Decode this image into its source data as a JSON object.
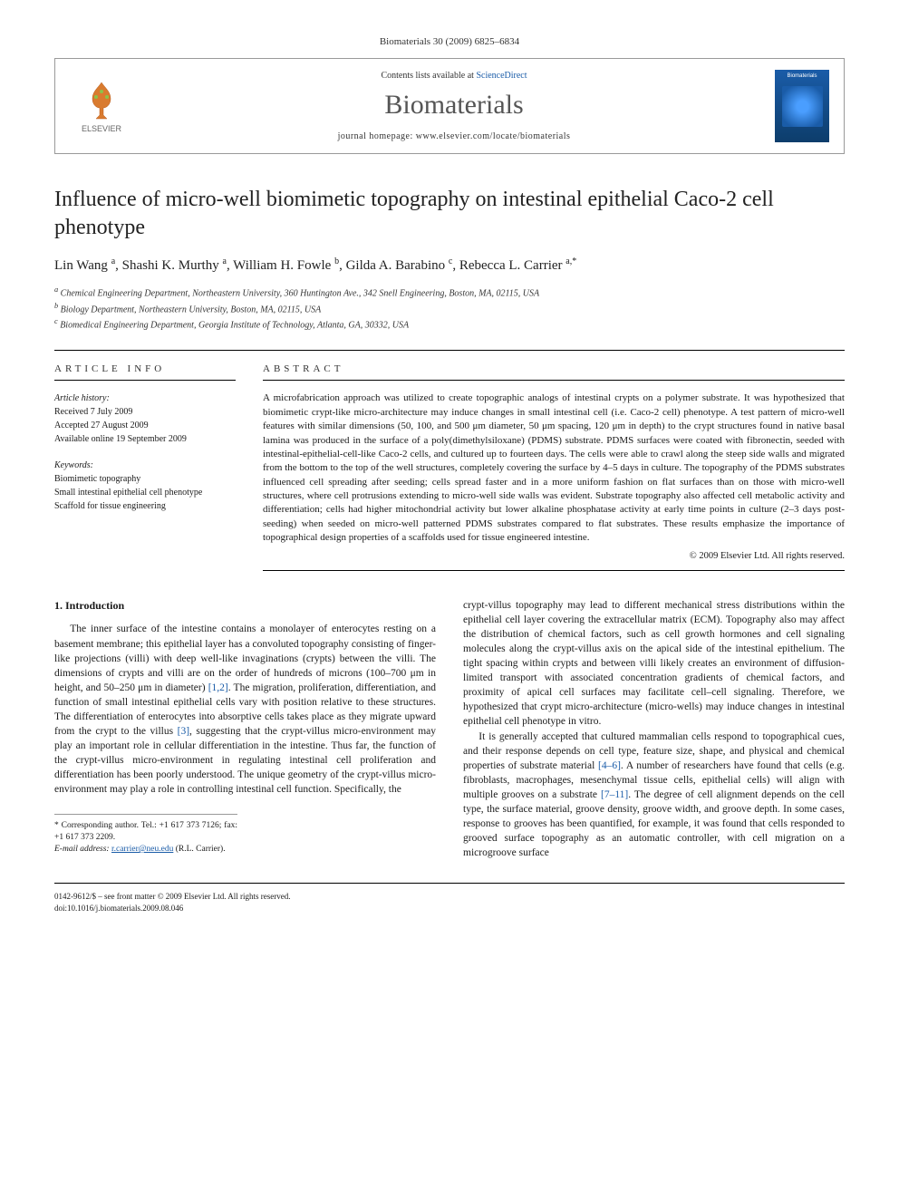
{
  "header": {
    "citation": "Biomaterials 30 (2009) 6825–6834",
    "contents_prefix": "Contents lists available at ",
    "contents_link": "ScienceDirect",
    "journal_name": "Biomaterials",
    "homepage_prefix": "journal homepage: ",
    "homepage_url": "www.elsevier.com/locate/biomaterials",
    "publisher": "ELSEVIER",
    "cover_label": "Biomaterials"
  },
  "article": {
    "title": "Influence of micro-well biomimetic topography on intestinal epithelial Caco-2 cell phenotype",
    "authors_html": "Lin Wang <sup>a</sup>, Shashi K. Murthy <sup>a</sup>, William H. Fowle <sup>b</sup>, Gilda A. Barabino <sup>c</sup>, Rebecca L. Carrier <sup>a,*</sup>",
    "affiliations": [
      "a Chemical Engineering Department, Northeastern University, 360 Huntington Ave., 342 Snell Engineering, Boston, MA, 02115, USA",
      "b Biology Department, Northeastern University, Boston, MA, 02115, USA",
      "c Biomedical Engineering Department, Georgia Institute of Technology, Atlanta, GA, 30332, USA"
    ]
  },
  "info": {
    "heading": "ARTICLE INFO",
    "history_label": "Article history:",
    "received": "Received 7 July 2009",
    "accepted": "Accepted 27 August 2009",
    "online": "Available online 19 September 2009",
    "keywords_label": "Keywords:",
    "keywords": [
      "Biomimetic topography",
      "Small intestinal epithelial cell phenotype",
      "Scaffold for tissue engineering"
    ]
  },
  "abstract": {
    "heading": "ABSTRACT",
    "text": "A microfabrication approach was utilized to create topographic analogs of intestinal crypts on a polymer substrate. It was hypothesized that biomimetic crypt-like micro-architecture may induce changes in small intestinal cell (i.e. Caco-2 cell) phenotype. A test pattern of micro-well features with similar dimensions (50, 100, and 500 μm diameter, 50 μm spacing, 120 μm in depth) to the crypt structures found in native basal lamina was produced in the surface of a poly(dimethylsiloxane) (PDMS) substrate. PDMS surfaces were coated with fibronectin, seeded with intestinal-epithelial-cell-like Caco-2 cells, and cultured up to fourteen days. The cells were able to crawl along the steep side walls and migrated from the bottom to the top of the well structures, completely covering the surface by 4–5 days in culture. The topography of the PDMS substrates influenced cell spreading after seeding; cells spread faster and in a more uniform fashion on flat surfaces than on those with micro-well structures, where cell protrusions extending to micro-well side walls was evident. Substrate topography also affected cell metabolic activity and differentiation; cells had higher mitochondrial activity but lower alkaline phosphatase activity at early time points in culture (2–3 days post-seeding) when seeded on micro-well patterned PDMS substrates compared to flat substrates. These results emphasize the importance of topographical design properties of a scaffolds used for tissue engineered intestine.",
    "copyright": "© 2009 Elsevier Ltd. All rights reserved."
  },
  "body": {
    "intro_heading": "1. Introduction",
    "col1_p1": "The inner surface of the intestine contains a monolayer of enterocytes resting on a basement membrane; this epithelial layer has a convoluted topography consisting of finger-like projections (villi) with deep well-like invaginations (crypts) between the villi. The dimensions of crypts and villi are on the order of hundreds of microns (100–700 μm in height, and 50–250 μm in diameter) ",
    "ref1": "[1,2]",
    "col1_p1b": ". The migration, proliferation, differentiation, and function of small intestinal epithelial cells vary with position relative to these structures. The differentiation of enterocytes into absorptive cells takes place as they migrate upward from the crypt to the villus ",
    "ref2": "[3]",
    "col1_p1c": ", suggesting that the crypt-villus micro-environment may play an important role in cellular differentiation in the intestine. Thus far, the function of the crypt-villus micro-environment in regulating intestinal cell proliferation and differentiation has been poorly understood. The unique geometry of the crypt-villus micro-environment may play a role in controlling intestinal cell function. Specifically, the",
    "col2_p1": "crypt-villus topography may lead to different mechanical stress distributions within the epithelial cell layer covering the extracellular matrix (ECM). Topography also may affect the distribution of chemical factors, such as cell growth hormones and cell signaling molecules along the crypt-villus axis on the apical side of the intestinal epithelium. The tight spacing within crypts and between villi likely creates an environment of diffusion-limited transport with associated concentration gradients of chemical factors, and proximity of apical cell surfaces may facilitate cell–cell signaling. Therefore, we hypothesized that crypt micro-architecture (micro-wells) may induce changes in intestinal epithelial cell phenotype in vitro.",
    "col2_p2a": "It is generally accepted that cultured mammalian cells respond to topographical cues, and their response depends on cell type, feature size, shape, and physical and chemical properties of substrate material ",
    "ref3": "[4–6]",
    "col2_p2b": ". A number of researchers have found that cells (e.g. fibroblasts, macrophages, mesenchymal tissue cells, epithelial cells) will align with multiple grooves on a substrate ",
    "ref4": "[7–11]",
    "col2_p2c": ". The degree of cell alignment depends on the cell type, the surface material, groove density, groove width, and groove depth. In some cases, response to grooves has been quantified, for example, it was found that cells responded to grooved surface topography as an automatic controller, with cell migration on a microgroove surface"
  },
  "corr": {
    "line1": "* Corresponding author. Tel.: +1 617 373 7126; fax: +1 617 373 2209.",
    "line2_prefix": "E-mail address: ",
    "email": "r.carrier@neu.edu",
    "line2_suffix": " (R.L. Carrier)."
  },
  "footer": {
    "line1": "0142-9612/$ – see front matter © 2009 Elsevier Ltd. All rights reserved.",
    "line2": "doi:10.1016/j.biomaterials.2009.08.046"
  },
  "colors": {
    "link": "#1a5ca8",
    "text": "#1a1a1a",
    "border": "#999999"
  }
}
